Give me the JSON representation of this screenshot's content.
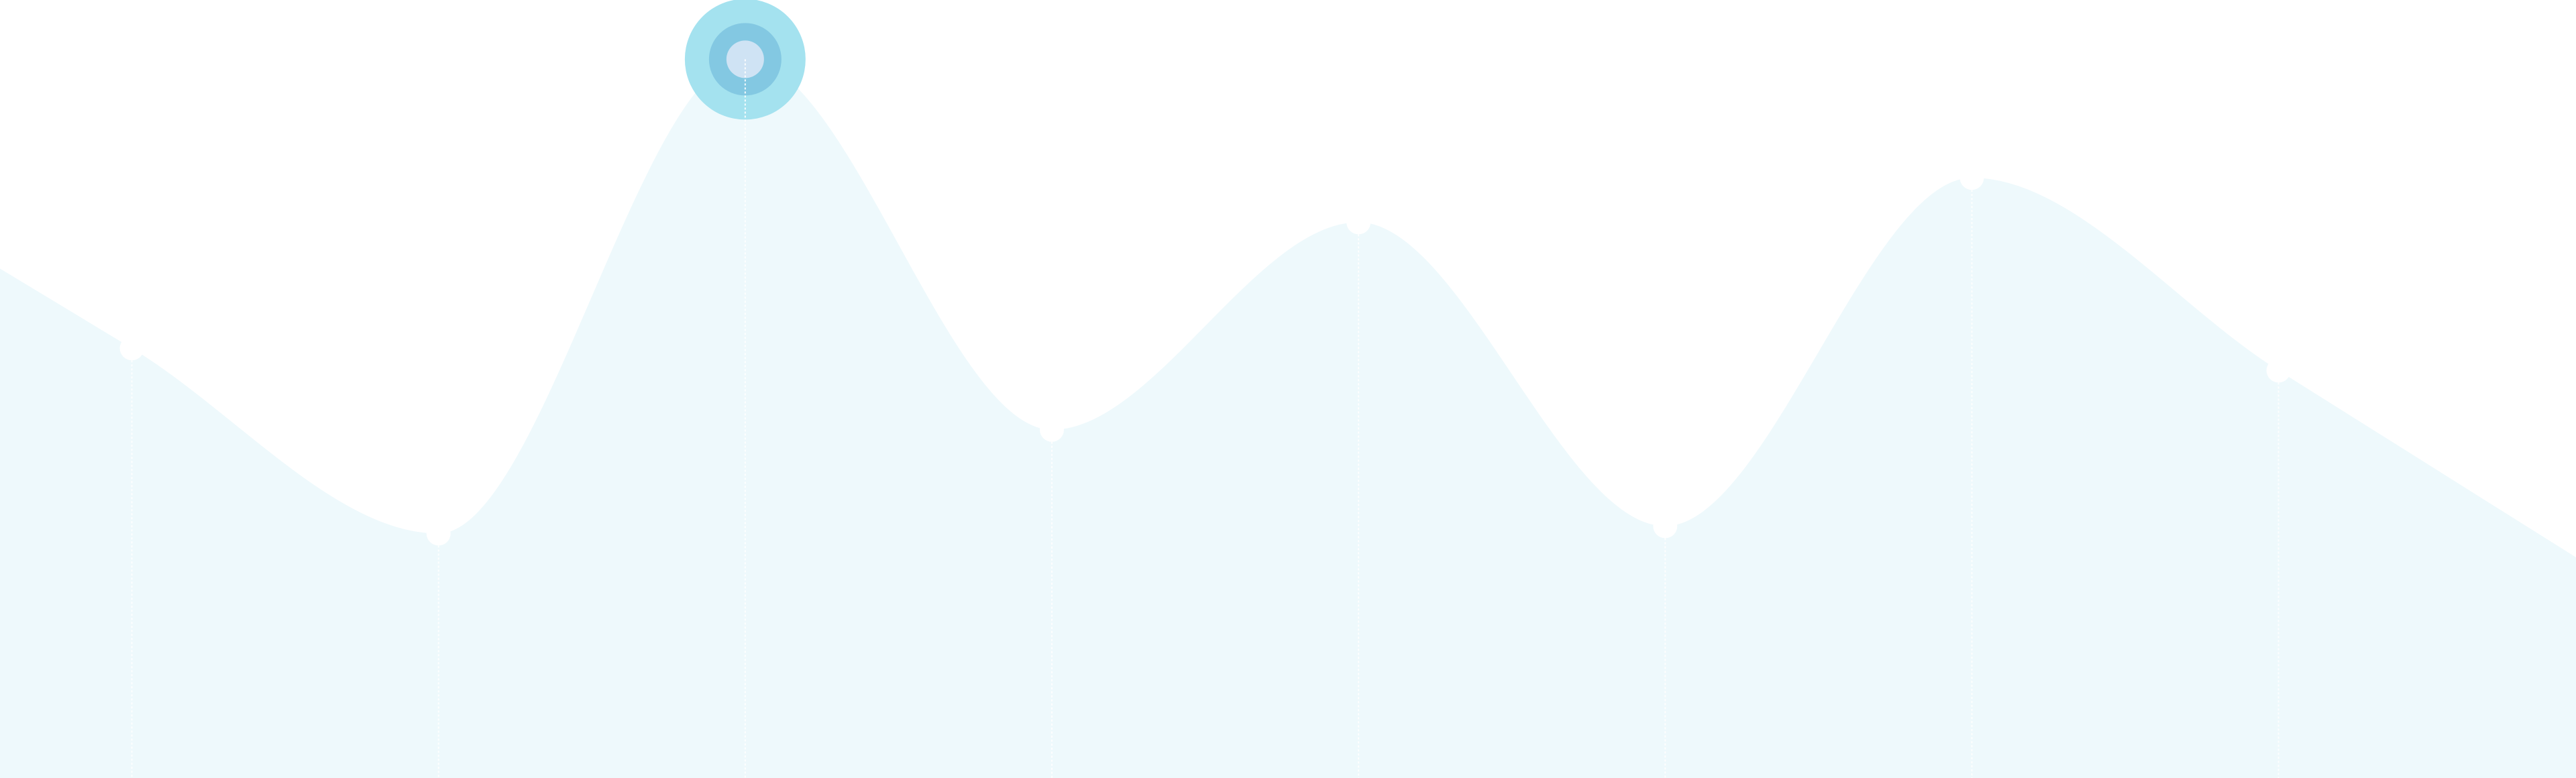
{
  "chart_data": {
    "type": "area",
    "title": "",
    "xlabel": "",
    "ylabel": "",
    "x": [
      0.5,
      1.5,
      2.5,
      3.5,
      4.5,
      5.5,
      6.5,
      7.5
    ],
    "xlim": [
      0.07,
      8.47
    ],
    "series": [
      {
        "values": [
          58,
          33,
          97,
          47,
          75,
          34,
          81,
          55
        ]
      }
    ],
    "ylim": [
      0,
      105
    ],
    "highlight_index": 2,
    "grid": false,
    "legend": "none",
    "colors": {
      "area": "#eef9fc",
      "point": "#ffffff",
      "guide": "#ffffff",
      "highlight_outer": "#a4e2ef",
      "highlight_mid": "#83c8e2",
      "highlight_inner": "#cfe3f4"
    }
  }
}
